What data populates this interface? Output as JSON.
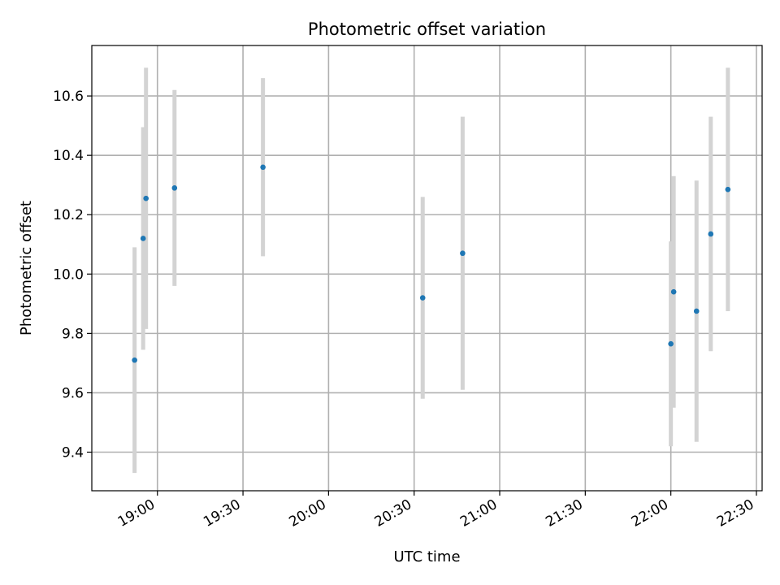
{
  "chart_data": {
    "type": "scatter",
    "title": "Photometric offset variation",
    "xlabel": "UTC time",
    "ylabel": "Photometric offset",
    "x_axis_type": "time",
    "xlim": [
      "18:37",
      "22:32"
    ],
    "ylim": [
      9.27,
      10.77
    ],
    "xticks": [
      "19:00",
      "19:30",
      "20:00",
      "20:30",
      "21:00",
      "21:30",
      "22:00",
      "22:30"
    ],
    "yticks": [
      9.4,
      9.6,
      9.8,
      10.0,
      10.2,
      10.4,
      10.6
    ],
    "grid": true,
    "colors": {
      "point": "#1f77b4",
      "errorbar": "#d3d3d3",
      "grid": "#b0b0b0"
    },
    "points": [
      {
        "x": "18:52",
        "y": 9.71,
        "yerr": 0.38
      },
      {
        "x": "18:55",
        "y": 10.12,
        "yerr": 0.375
      },
      {
        "x": "18:56",
        "y": 10.255,
        "yerr": 0.44
      },
      {
        "x": "19:06",
        "y": 10.29,
        "yerr": 0.33
      },
      {
        "x": "19:37",
        "y": 10.36,
        "yerr": 0.3
      },
      {
        "x": "20:33",
        "y": 9.92,
        "yerr": 0.34
      },
      {
        "x": "20:47",
        "y": 10.07,
        "yerr": 0.46
      },
      {
        "x": "22:00",
        "y": 9.765,
        "yerr": 0.345
      },
      {
        "x": "22:01",
        "y": 9.94,
        "yerr": 0.39
      },
      {
        "x": "22:09",
        "y": 9.875,
        "yerr": 0.44
      },
      {
        "x": "22:14",
        "y": 10.135,
        "yerr": 0.395
      },
      {
        "x": "22:20",
        "y": 10.285,
        "yerr": 0.41
      }
    ]
  }
}
